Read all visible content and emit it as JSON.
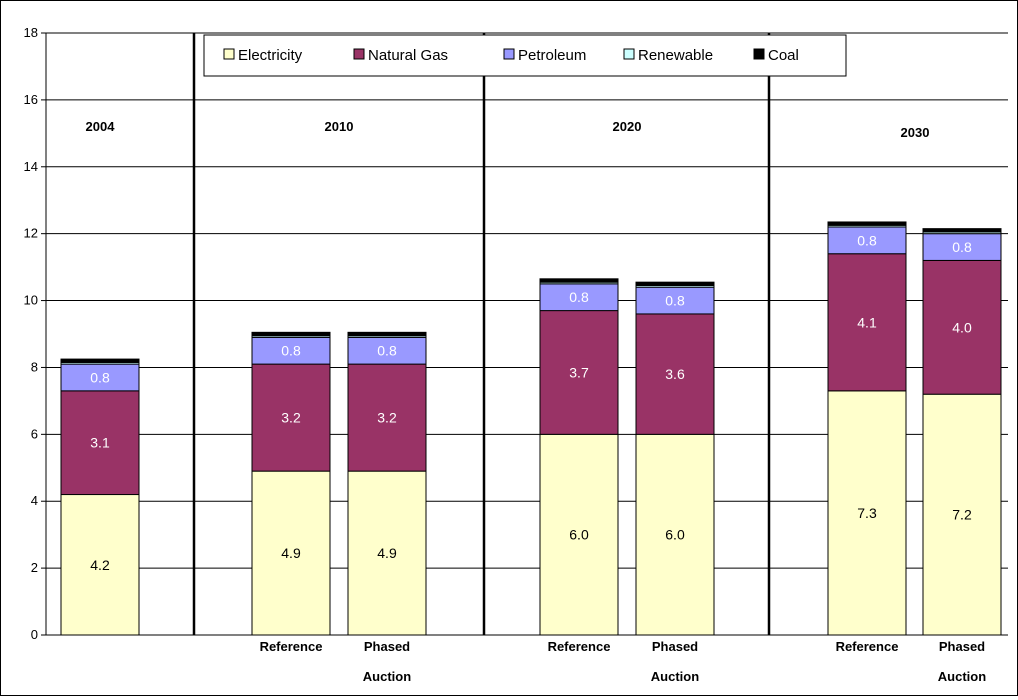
{
  "chart_data": {
    "type": "bar",
    "stacked": true,
    "ylim": [
      0,
      18
    ],
    "yticks": [
      0,
      2,
      4,
      6,
      8,
      10,
      12,
      14,
      16,
      18
    ],
    "grid": true,
    "legend_position": "top",
    "groups": [
      {
        "label": "2004",
        "bars": [
          {
            "label": ""
          }
        ]
      },
      {
        "label": "2010",
        "bars": [
          {
            "label": "Reference"
          },
          {
            "label": "Phased Auction"
          }
        ]
      },
      {
        "label": "2020",
        "bars": [
          {
            "label": "Reference"
          },
          {
            "label": "Phased Auction"
          }
        ]
      },
      {
        "label": "2030",
        "bars": [
          {
            "label": "Reference"
          },
          {
            "label": "Phased Auction"
          }
        ]
      }
    ],
    "series": [
      {
        "name": "Electricity",
        "color": "#FFFFCC",
        "values": [
          4.2,
          4.9,
          4.9,
          6.0,
          6.0,
          7.3,
          7.2
        ],
        "labels": [
          "4.2",
          "4.9",
          "4.9",
          "6.0",
          "6.0",
          "7.3",
          "7.2"
        ]
      },
      {
        "name": "Natural Gas",
        "color": "#993366",
        "values": [
          3.1,
          3.2,
          3.2,
          3.7,
          3.6,
          4.1,
          4.0
        ],
        "labels": [
          "3.1",
          "3.2",
          "3.2",
          "3.7",
          "3.6",
          "4.1",
          "4.0"
        ]
      },
      {
        "name": "Petroleum",
        "color": "#9999FF",
        "values": [
          0.8,
          0.8,
          0.8,
          0.8,
          0.8,
          0.8,
          0.8
        ],
        "labels": [
          "0.8",
          "0.8",
          "0.8",
          "0.8",
          "0.8",
          "0.8",
          "0.8"
        ]
      },
      {
        "name": "Renewable",
        "color": "#CCFFFF",
        "values": [
          0.05,
          0.05,
          0.05,
          0.05,
          0.05,
          0.05,
          0.05
        ],
        "labels": []
      },
      {
        "name": "Coal",
        "color": "#000000",
        "values": [
          0.1,
          0.1,
          0.1,
          0.1,
          0.1,
          0.1,
          0.1
        ],
        "labels": []
      }
    ]
  }
}
